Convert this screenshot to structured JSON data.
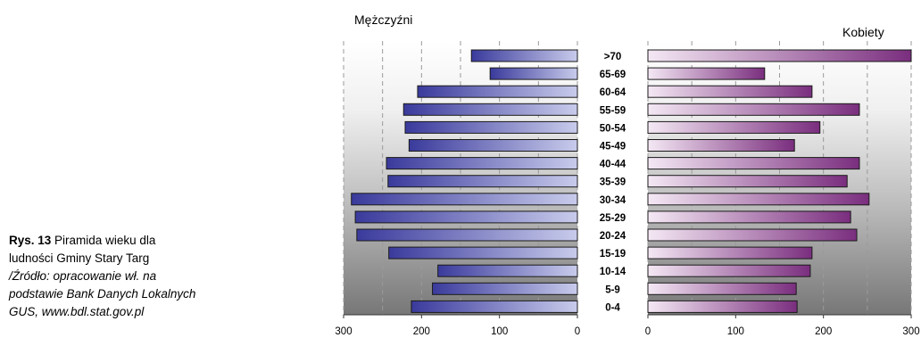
{
  "caption": {
    "label": "Rys.  13",
    "line1": " Piramida wieku  dla",
    "line2": "ludności Gminy   Stary Targ",
    "source1": "/Źródło: opracowanie wł. na",
    "source2": "podstawie Bank Danych Lokalnych",
    "source3": " GUS, www.bdl.stat.gov.pl"
  },
  "chart_data": {
    "type": "bar",
    "subtype": "population-pyramid",
    "categories": [
      ">70",
      "65-69",
      "60-64",
      "55-59",
      "50-54",
      "45-49",
      "40-44",
      "35-39",
      "30-34",
      "25-29",
      "20-24",
      "15-19",
      "10-14",
      "5-9",
      "0-4"
    ],
    "series": [
      {
        "name": "Mężczyźni",
        "values": [
          136,
          112,
          205,
          223,
          221,
          216,
          245,
          243,
          290,
          285,
          283,
          242,
          179,
          186,
          213
        ],
        "color": "#3a3a9c"
      },
      {
        "name": "Kobiety",
        "values": [
          300,
          133,
          187,
          241,
          196,
          167,
          241,
          227,
          252,
          231,
          238,
          187,
          185,
          169,
          170
        ],
        "color": "#7a2e7e"
      }
    ],
    "left_axis": {
      "ticks": [
        "300",
        "200",
        "100",
        "0"
      ],
      "range": [
        300,
        0
      ]
    },
    "right_axis": {
      "ticks": [
        "0",
        "100",
        "200",
        "300"
      ],
      "range": [
        0,
        300
      ]
    },
    "grid": "dashed vertical at 50-unit steps",
    "background": "gray vertical gradient"
  },
  "colors": {
    "male_dark": "#3a3a9c",
    "male_light": "#c8cbeb",
    "female_light": "#f4e8f4",
    "female_dark": "#7a2e7e",
    "bg_top": "#ffffff",
    "bg_bottom": "#777777"
  }
}
